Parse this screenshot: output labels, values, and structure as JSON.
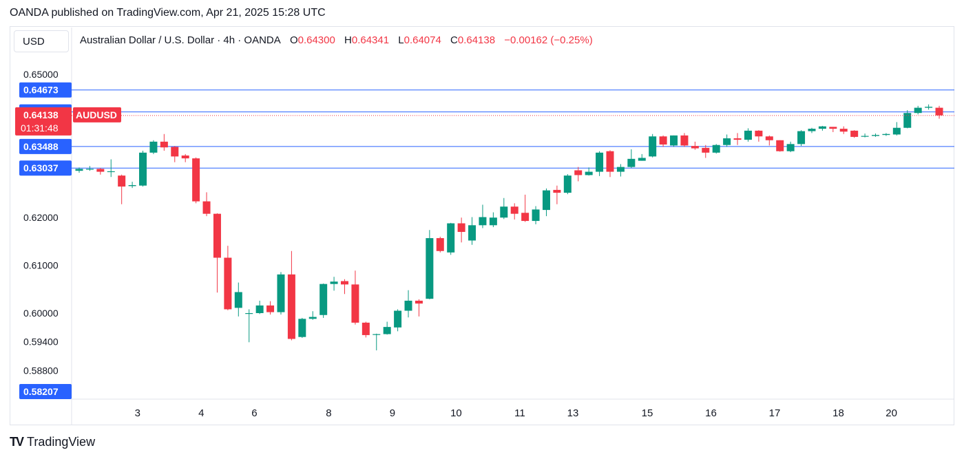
{
  "publisher_line": "OANDA published on TradingView.com, Apr 21, 2025 15:28 UTC",
  "currency_button": "USD",
  "legend": {
    "symbol": "Australian Dollar / U.S. Dollar · 4h · OANDA",
    "o_label": "O",
    "o_value": "0.64300",
    "h_label": "H",
    "h_value": "0.64341",
    "l_label": "L",
    "l_value": "0.64074",
    "c_label": "C",
    "c_value": "0.64138",
    "change": "−0.00162 (−0.25%)"
  },
  "footer_brand": "TradingView",
  "colors": {
    "up": "#089981",
    "down": "#f23645",
    "hline": "#2962ff",
    "price_tag": "#f23645",
    "hline_tag": "#2962ff"
  },
  "chart_data": {
    "type": "candlestick",
    "symbol": "AUDUSD",
    "interval": "4h",
    "ylim": [
      0.58207,
      0.6535
    ],
    "y_ticks": [
      "0.65000",
      "0.62000",
      "0.61000",
      "0.60000",
      "0.59400",
      "0.58800"
    ],
    "x_ticks": [
      {
        "label": "3",
        "index": 5.5
      },
      {
        "label": "4",
        "index": 11.5
      },
      {
        "label": "6",
        "index": 16.5
      },
      {
        "label": "8",
        "index": 23.5
      },
      {
        "label": "9",
        "index": 29.5
      },
      {
        "label": "10",
        "index": 35.5
      },
      {
        "label": "11",
        "index": 41.5
      },
      {
        "label": "13",
        "index": 46.5
      },
      {
        "label": "15",
        "index": 53.5
      },
      {
        "label": "16",
        "index": 59.5
      },
      {
        "label": "17",
        "index": 65.5
      },
      {
        "label": "18",
        "index": 71.5
      },
      {
        "label": "20",
        "index": 76.5
      }
    ],
    "horizontal_lines": [
      "0.64673",
      "0.64213",
      "0.63488",
      "0.63037",
      "0.58207"
    ],
    "current_price": {
      "value": "0.64138",
      "symbol_label": "AUDUSD",
      "countdown": "01:31:48"
    },
    "candles": [
      [
        0.6298,
        0.6302,
        0.6294,
        0.6305
      ],
      [
        0.6302,
        0.6302,
        0.6298,
        0.6308
      ],
      [
        0.6302,
        0.6296,
        0.629,
        0.6304
      ],
      [
        0.6297,
        0.6297,
        0.6285,
        0.6322
      ],
      [
        0.6288,
        0.6265,
        0.6228,
        0.629
      ],
      [
        0.6266,
        0.6268,
        0.6262,
        0.6275
      ],
      [
        0.6267,
        0.6336,
        0.6265,
        0.634
      ],
      [
        0.6336,
        0.6359,
        0.6333,
        0.6362
      ],
      [
        0.6359,
        0.6347,
        0.634,
        0.6375
      ],
      [
        0.6348,
        0.6328,
        0.6316,
        0.635
      ],
      [
        0.633,
        0.6324,
        0.6316,
        0.6333
      ],
      [
        0.6324,
        0.6234,
        0.623,
        0.6326
      ],
      [
        0.6234,
        0.6208,
        0.6203,
        0.6253
      ],
      [
        0.6208,
        0.6116,
        0.6043,
        0.6209
      ],
      [
        0.6116,
        0.6008,
        0.6006,
        0.6141
      ],
      [
        0.6011,
        0.6044,
        0.5993,
        0.6064
      ],
      [
        0.6,
        0.6,
        0.5939,
        0.6008
      ],
      [
        0.6,
        0.6016,
        0.5998,
        0.6026
      ],
      [
        0.6016,
        0.6002,
        0.5997,
        0.6025
      ],
      [
        0.6002,
        0.6081,
        0.5997,
        0.6086
      ],
      [
        0.6081,
        0.5946,
        0.5943,
        0.613
      ],
      [
        0.595,
        0.5988,
        0.5948,
        0.599
      ],
      [
        0.5988,
        0.5992,
        0.5986,
        0.6004
      ],
      [
        0.5996,
        0.6061,
        0.599,
        0.6062
      ],
      [
        0.6061,
        0.6066,
        0.6047,
        0.6076
      ],
      [
        0.6067,
        0.606,
        0.604,
        0.6071
      ],
      [
        0.606,
        0.598,
        0.5976,
        0.6089
      ],
      [
        0.598,
        0.5954,
        0.5949,
        0.5982
      ],
      [
        0.5955,
        0.5956,
        0.5922,
        0.5957
      ],
      [
        0.5956,
        0.5971,
        0.5955,
        0.5982
      ],
      [
        0.597,
        0.6005,
        0.5962,
        0.6008
      ],
      [
        0.6005,
        0.6026,
        0.5991,
        0.6048
      ],
      [
        0.6026,
        0.602,
        0.5993,
        0.6029
      ],
      [
        0.603,
        0.6157,
        0.6029,
        0.6174
      ],
      [
        0.6157,
        0.613,
        0.6127,
        0.616
      ],
      [
        0.6127,
        0.6188,
        0.6122,
        0.6189
      ],
      [
        0.6188,
        0.617,
        0.6148,
        0.62
      ],
      [
        0.6152,
        0.6184,
        0.6143,
        0.6201
      ],
      [
        0.6184,
        0.6201,
        0.6178,
        0.6227
      ],
      [
        0.6184,
        0.62,
        0.618,
        0.6211
      ],
      [
        0.62,
        0.6223,
        0.6197,
        0.6241
      ],
      [
        0.6223,
        0.6208,
        0.6196,
        0.623
      ],
      [
        0.621,
        0.6193,
        0.6191,
        0.6248
      ],
      [
        0.6193,
        0.6217,
        0.6186,
        0.6224
      ],
      [
        0.6216,
        0.6257,
        0.6203,
        0.6261
      ],
      [
        0.6258,
        0.6252,
        0.6228,
        0.6267
      ],
      [
        0.6252,
        0.6288,
        0.6249,
        0.6291
      ],
      [
        0.6299,
        0.6289,
        0.6276,
        0.6306
      ],
      [
        0.6289,
        0.6296,
        0.6288,
        0.6305
      ],
      [
        0.6296,
        0.6336,
        0.6287,
        0.6339
      ],
      [
        0.6339,
        0.6296,
        0.6285,
        0.6341
      ],
      [
        0.6296,
        0.6306,
        0.6286,
        0.6312
      ],
      [
        0.6306,
        0.6323,
        0.6304,
        0.6343
      ],
      [
        0.6319,
        0.6325,
        0.6319,
        0.6333
      ],
      [
        0.6328,
        0.637,
        0.6326,
        0.6375
      ],
      [
        0.637,
        0.6353,
        0.6348,
        0.6372
      ],
      [
        0.6351,
        0.6372,
        0.6348,
        0.6372
      ],
      [
        0.6372,
        0.6351,
        0.6348,
        0.6377
      ],
      [
        0.635,
        0.6345,
        0.6342,
        0.6359
      ],
      [
        0.6346,
        0.6336,
        0.6325,
        0.6352
      ],
      [
        0.6336,
        0.6352,
        0.6334,
        0.6354
      ],
      [
        0.6352,
        0.6366,
        0.6348,
        0.6374
      ],
      [
        0.6366,
        0.6363,
        0.6352,
        0.6377
      ],
      [
        0.6363,
        0.6382,
        0.6359,
        0.6387
      ],
      [
        0.6382,
        0.637,
        0.6359,
        0.6383
      ],
      [
        0.637,
        0.6362,
        0.6351,
        0.6372
      ],
      [
        0.6362,
        0.6339,
        0.6338,
        0.6362
      ],
      [
        0.6339,
        0.6354,
        0.6337,
        0.6359
      ],
      [
        0.6354,
        0.6381,
        0.635,
        0.6383
      ],
      [
        0.6381,
        0.6386,
        0.6377,
        0.6388
      ],
      [
        0.6386,
        0.6391,
        0.6382,
        0.6392
      ],
      [
        0.639,
        0.6386,
        0.6379,
        0.639
      ],
      [
        0.6386,
        0.638,
        0.6375,
        0.6391
      ],
      [
        0.6382,
        0.6369,
        0.6367,
        0.6383
      ],
      [
        0.637,
        0.6371,
        0.6368,
        0.6376
      ],
      [
        0.6371,
        0.6373,
        0.6369,
        0.6376
      ],
      [
        0.6373,
        0.6375,
        0.6371,
        0.6377
      ],
      [
        0.6374,
        0.6388,
        0.6372,
        0.64
      ],
      [
        0.6388,
        0.6419,
        0.6387,
        0.6425
      ],
      [
        0.6419,
        0.643,
        0.6416,
        0.6434
      ],
      [
        0.643,
        0.6432,
        0.6426,
        0.6437
      ],
      [
        0.643,
        0.6414,
        0.6407,
        0.6434
      ]
    ]
  }
}
